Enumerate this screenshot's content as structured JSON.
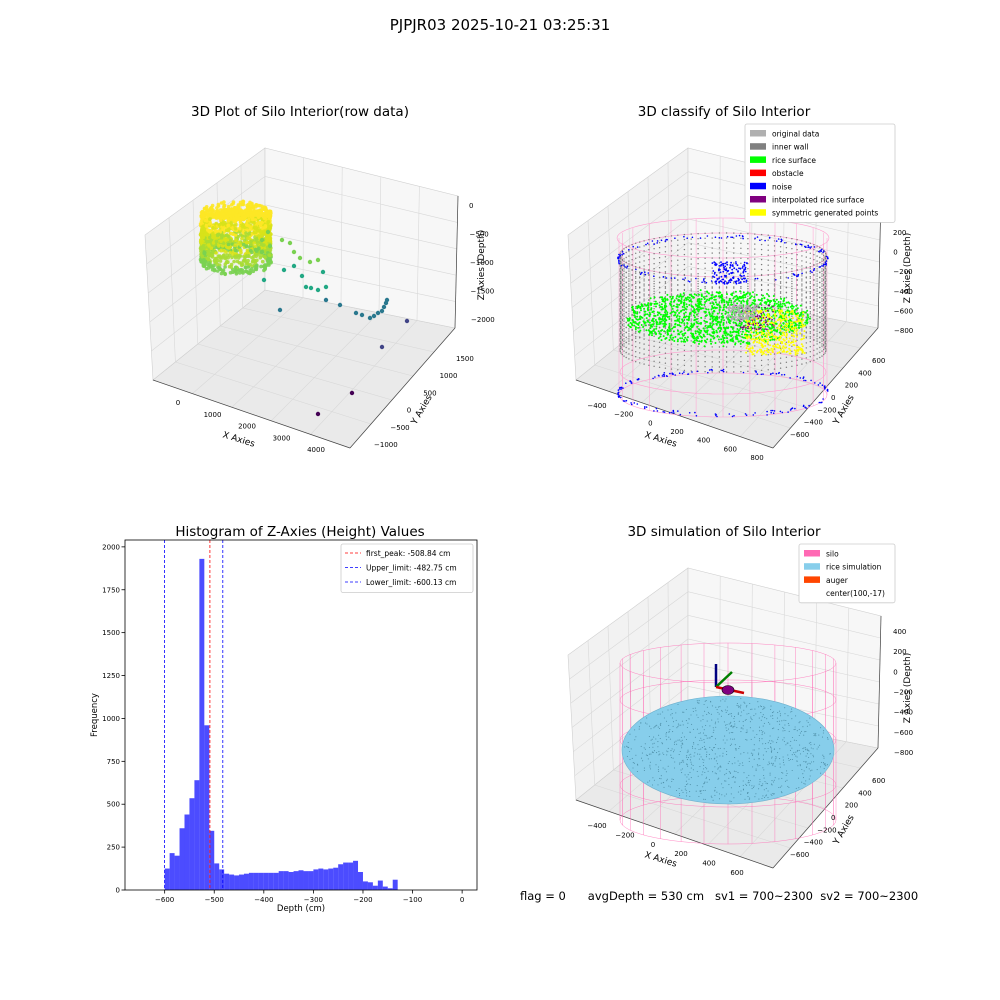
{
  "page": {
    "title": "PJPJR03 2025-10-21 03:25:31"
  },
  "footer": {
    "flag": "flag = 0",
    "avg_depth": "avgDepth = 530 cm",
    "sv1": "sv1 = 700~2300",
    "sv2": "sv2 = 700~2300"
  },
  "chart_data": [
    {
      "type": "scatter",
      "title": "3D Plot of Silo Interior(row data)",
      "xlabel": "X Axies",
      "ylabel": "Y Axies",
      "zlabel": "Z Axies (Depth)",
      "x_ticks": [
        "0",
        "1000",
        "2000",
        "3000",
        "4000"
      ],
      "y_ticks": [
        "−1000",
        "−500",
        "0",
        "500",
        "1000",
        "1500"
      ],
      "z_ticks": [
        "0",
        "−500",
        "−1000",
        "−1500",
        "−2000"
      ],
      "colormap": [
        "#fde725",
        "#7ad151",
        "#22a884",
        "#2a788e",
        "#414487",
        "#440154"
      ]
    },
    {
      "type": "scatter",
      "title": "3D classify of Silo Interior",
      "xlabel": "X Axies",
      "ylabel": "Y Axies",
      "zlabel": "Z Axies (Depth)",
      "x_ticks": [
        "−400",
        "−200",
        "0",
        "200",
        "400",
        "600",
        "800"
      ],
      "y_ticks": [
        "−600",
        "−400",
        "−200",
        "0",
        "200",
        "400",
        "600"
      ],
      "z_ticks": [
        "200",
        "0",
        "−200",
        "−400",
        "−600",
        "−800"
      ],
      "legend_position": "top-right",
      "legend": [
        {
          "label": "original data",
          "color": "#b0b0b0"
        },
        {
          "label": "inner wall",
          "color": "#808080"
        },
        {
          "label": "rice surface",
          "color": "#00ff00"
        },
        {
          "label": "obstacle",
          "color": "#ff0000"
        },
        {
          "label": "noise",
          "color": "#0000ff"
        },
        {
          "label": "interpolated rice surface",
          "color": "#800080"
        },
        {
          "label": "symmetric generated points",
          "color": "#ffff00"
        }
      ]
    },
    {
      "type": "bar",
      "title": "Histogram of Z-Axies (Height) Values",
      "xlabel": "Depth (cm)",
      "ylabel": "Frequency",
      "xlim": [
        -680,
        30
      ],
      "ylim": [
        0,
        2040
      ],
      "x_ticks": [
        -600,
        -500,
        -400,
        -300,
        -200,
        -100,
        0
      ],
      "y_ticks": [
        0,
        250,
        500,
        750,
        1000,
        1250,
        1500,
        1750,
        2000
      ],
      "bin_width": 10,
      "bin_start": -600,
      "values": [
        125,
        215,
        200,
        360,
        440,
        535,
        640,
        1930,
        960,
        345,
        155,
        120,
        95,
        90,
        85,
        90,
        95,
        100,
        100,
        100,
        100,
        100,
        100,
        110,
        110,
        105,
        110,
        115,
        110,
        110,
        120,
        125,
        120,
        125,
        130,
        150,
        160,
        160,
        170,
        105,
        50,
        45,
        25,
        55,
        20,
        10,
        60
      ],
      "bar_color": "#0000ff",
      "bar_alpha": 0.7,
      "vlines": [
        {
          "label": "first_peak: -508.84 cm",
          "x": -508.84,
          "color": "#ff0000"
        },
        {
          "label": "Upper_limit: -482.75 cm",
          "x": -482.75,
          "color": "#0000ff"
        },
        {
          "label": "Lower_limit: -600.13 cm",
          "x": -600.13,
          "color": "#0000ff"
        }
      ],
      "legend_position": "top-right"
    },
    {
      "type": "scatter",
      "title": "3D simulation of Silo Interior",
      "xlabel": "X Axies",
      "ylabel": "Y Axies",
      "zlabel": "Z Axies (Depth)",
      "x_ticks": [
        "−400",
        "−200",
        "0",
        "200",
        "400",
        "600"
      ],
      "y_ticks": [
        "−600",
        "−400",
        "−200",
        "0",
        "200",
        "400",
        "600"
      ],
      "z_ticks": [
        "400",
        "200",
        "0",
        "−200",
        "−400",
        "−600",
        "−800"
      ],
      "legend_position": "top-right",
      "legend": [
        {
          "label": "silo",
          "color": "#ff69b4"
        },
        {
          "label": "rice simulation",
          "color": "#87ceeb"
        },
        {
          "label": "auger",
          "color": "#ff4500"
        },
        {
          "label": "center(100,-17)",
          "color": ""
        }
      ]
    }
  ]
}
